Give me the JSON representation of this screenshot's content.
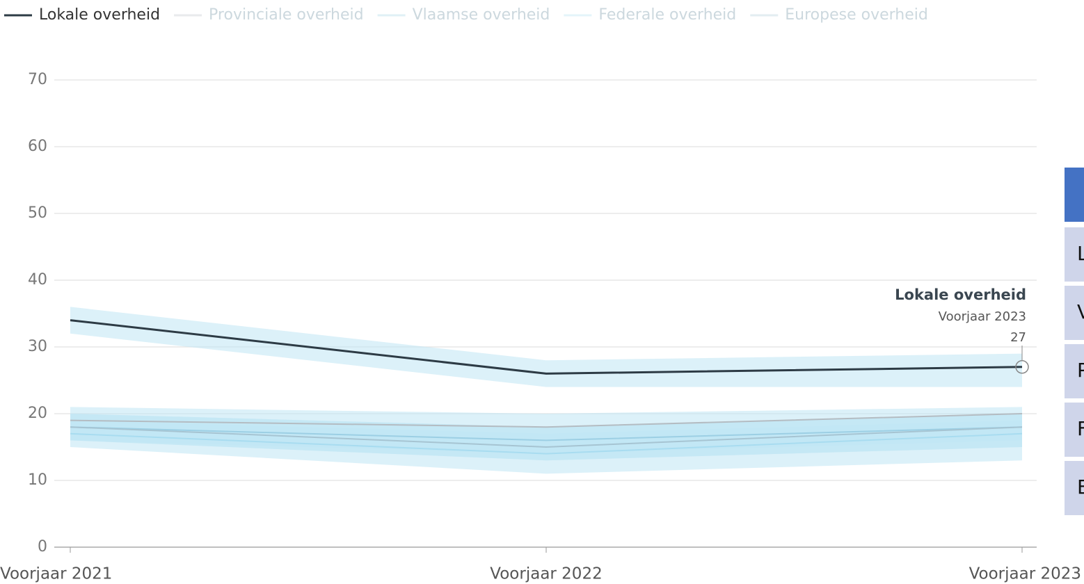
{
  "chart_data": {
    "type": "line",
    "categories": [
      "Voorjaar 2021",
      "Voorjaar 2022",
      "Voorjaar 2023"
    ],
    "series": [
      {
        "name": "Lokale overheid",
        "color": "#2d3b45",
        "values": [
          34,
          26,
          27
        ],
        "lower": [
          32,
          24,
          24
        ],
        "upper": [
          36,
          28,
          29
        ]
      },
      {
        "name": "Provinciale overheid",
        "color": "#b4bcc2",
        "values": [
          19,
          18,
          20
        ],
        "lower": [
          16,
          13,
          15
        ],
        "upper": [
          21,
          20,
          21
        ]
      },
      {
        "name": "Vlaamse overheid",
        "color": "#9ccfe4",
        "values": [
          18,
          16,
          18
        ],
        "lower": [
          16,
          14,
          16
        ],
        "upper": [
          20,
          18,
          20
        ]
      },
      {
        "name": "Federale overheid",
        "color": "#a8dcf0",
        "values": [
          17,
          14,
          17
        ],
        "lower": [
          15,
          11,
          13
        ],
        "upper": [
          19,
          17,
          19
        ]
      },
      {
        "name": "Europese overheid",
        "color": "#a6c4d2",
        "values": [
          18,
          15,
          18
        ],
        "lower": [
          16,
          13,
          15
        ],
        "upper": [
          20,
          18,
          20
        ]
      }
    ],
    "highlight_series": 0,
    "ylim": [
      0,
      70
    ],
    "yticks": [
      0,
      10,
      20,
      30,
      40,
      50,
      60,
      70
    ],
    "grid": true
  },
  "table": {
    "rows": [
      "L",
      "V",
      "P",
      "F",
      "E"
    ]
  }
}
